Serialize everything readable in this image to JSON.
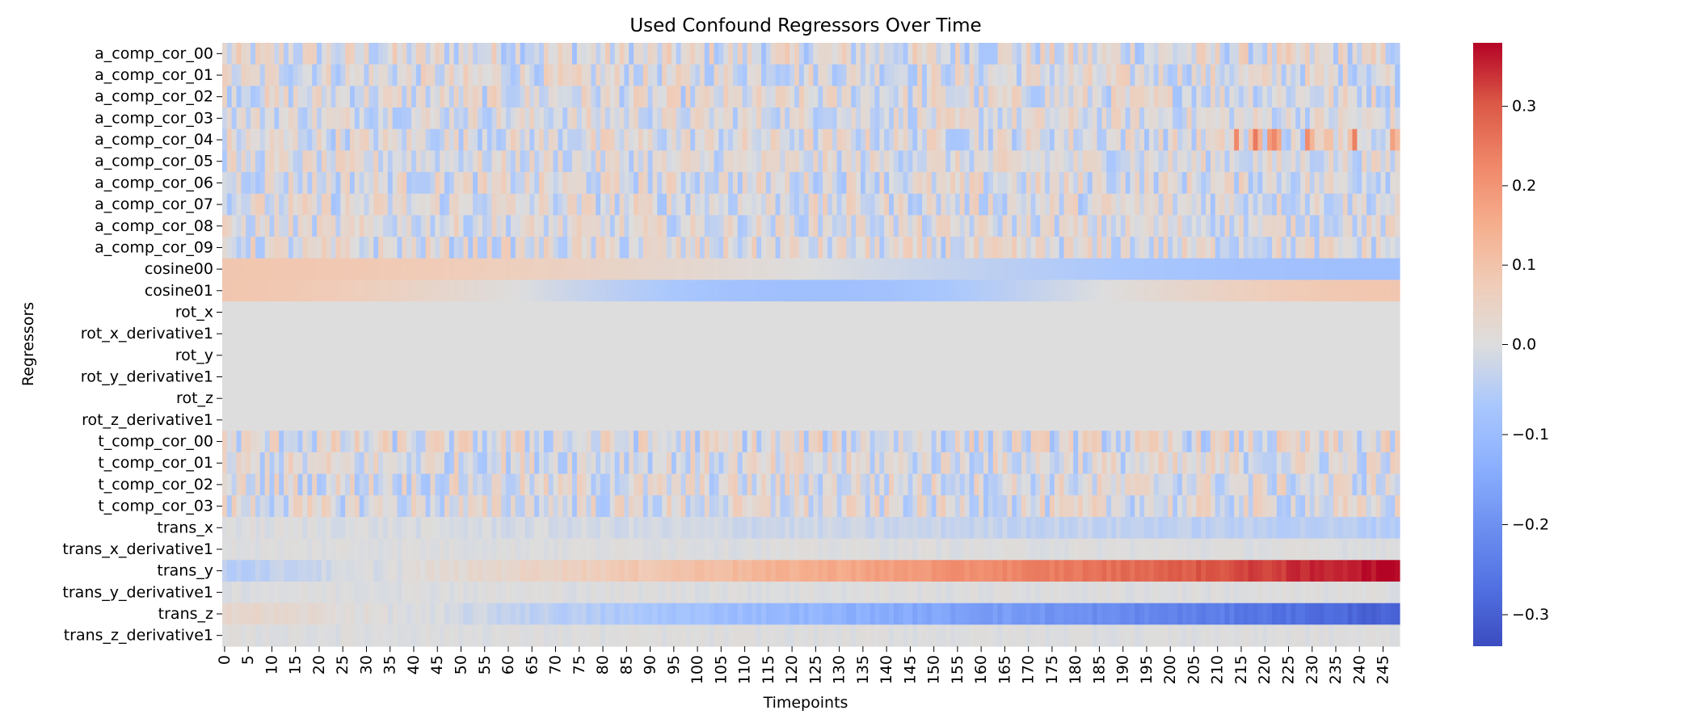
{
  "chart_data": {
    "type": "heatmap",
    "title": "Used Confound Regressors Over Time",
    "xlabel": "Timepoints",
    "ylabel": "Regressors",
    "n_timepoints": 249,
    "x_tick_labels": [
      "0",
      "5",
      "10",
      "15",
      "20",
      "25",
      "30",
      "35",
      "40",
      "45",
      "50",
      "55",
      "60",
      "65",
      "70",
      "75",
      "80",
      "85",
      "90",
      "95",
      "100",
      "105",
      "110",
      "115",
      "120",
      "125",
      "130",
      "135",
      "140",
      "145",
      "150",
      "155",
      "160",
      "165",
      "170",
      "175",
      "180",
      "185",
      "190",
      "195",
      "200",
      "205",
      "210",
      "215",
      "220",
      "225",
      "230",
      "235",
      "240",
      "245"
    ],
    "y_labels": [
      "a_comp_cor_00",
      "a_comp_cor_01",
      "a_comp_cor_02",
      "a_comp_cor_03",
      "a_comp_cor_04",
      "a_comp_cor_05",
      "a_comp_cor_06",
      "a_comp_cor_07",
      "a_comp_cor_08",
      "a_comp_cor_09",
      "cosine00",
      "cosine01",
      "rot_x",
      "rot_x_derivative1",
      "rot_y",
      "rot_y_derivative1",
      "rot_z",
      "rot_z_derivative1",
      "t_comp_cor_00",
      "t_comp_cor_01",
      "t_comp_cor_02",
      "t_comp_cor_03",
      "trans_x",
      "trans_x_derivative1",
      "trans_y",
      "trans_y_derivative1",
      "trans_z",
      "trans_z_derivative1"
    ],
    "colorbar": {
      "colormap": "coolwarm",
      "vmin": -0.335,
      "vmax": 0.38,
      "ticks": [
        0.3,
        0.2,
        0.1,
        0.0,
        -0.1,
        -0.2,
        -0.3
      ],
      "tick_labels": [
        "0.3",
        "0.2",
        "0.1",
        "0.0",
        "−0.1",
        "−0.2",
        "−0.3"
      ]
    },
    "row_profiles": {
      "a_comp_cor_00": {
        "pattern": "noise",
        "amplitude": 0.09
      },
      "a_comp_cor_01": {
        "pattern": "noise",
        "amplitude": 0.08
      },
      "a_comp_cor_02": {
        "pattern": "noise",
        "amplitude": 0.08
      },
      "a_comp_cor_03": {
        "pattern": "noise",
        "amplitude": 0.07
      },
      "a_comp_cor_04": {
        "pattern": "noise",
        "amplitude": 0.08,
        "late_peak": 0.18
      },
      "a_comp_cor_05": {
        "pattern": "noise",
        "amplitude": 0.07
      },
      "a_comp_cor_06": {
        "pattern": "noise",
        "amplitude": 0.08
      },
      "a_comp_cor_07": {
        "pattern": "noise",
        "amplitude": 0.08
      },
      "a_comp_cor_08": {
        "pattern": "noise",
        "amplitude": 0.07
      },
      "a_comp_cor_09": {
        "pattern": "noise",
        "amplitude": 0.08
      },
      "cosine00": {
        "pattern": "cosine",
        "amplitude": 0.09,
        "cycles": 0.5
      },
      "cosine01": {
        "pattern": "cosine",
        "amplitude": 0.09,
        "cycles": 1.0
      },
      "rot_x": {
        "pattern": "constant",
        "value": 0.0
      },
      "rot_x_derivative1": {
        "pattern": "constant",
        "value": 0.0
      },
      "rot_y": {
        "pattern": "constant",
        "value": 0.0
      },
      "rot_y_derivative1": {
        "pattern": "constant",
        "value": 0.0
      },
      "rot_z": {
        "pattern": "constant",
        "value": 0.0
      },
      "rot_z_derivative1": {
        "pattern": "constant",
        "value": 0.0
      },
      "t_comp_cor_00": {
        "pattern": "noise",
        "amplitude": 0.09
      },
      "t_comp_cor_01": {
        "pattern": "noise",
        "amplitude": 0.08
      },
      "t_comp_cor_02": {
        "pattern": "noise",
        "amplitude": 0.08
      },
      "t_comp_cor_03": {
        "pattern": "noise",
        "amplitude": 0.08
      },
      "trans_x": {
        "pattern": "trend",
        "start": 0.0,
        "end": -0.05
      },
      "trans_x_derivative1": {
        "pattern": "noise",
        "amplitude": 0.01
      },
      "trans_y": {
        "pattern": "trend",
        "start": -0.05,
        "end": 0.38
      },
      "trans_y_derivative1": {
        "pattern": "noise",
        "amplitude": 0.01
      },
      "trans_z": {
        "pattern": "trend",
        "start": 0.04,
        "end": -0.3
      },
      "trans_z_derivative1": {
        "pattern": "noise",
        "amplitude": 0.01
      }
    }
  }
}
